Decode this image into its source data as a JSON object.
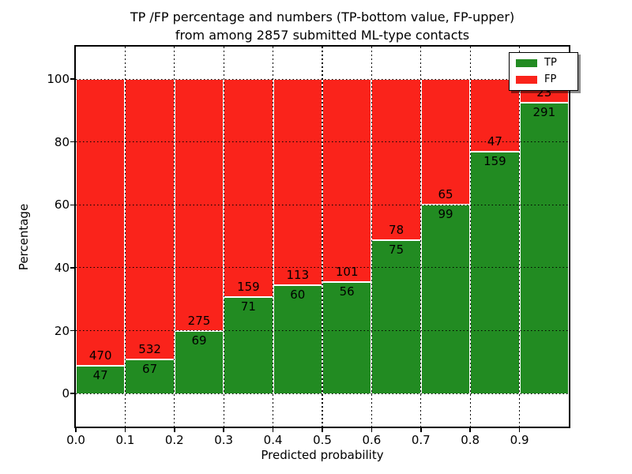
{
  "figure": {
    "title_line1": "TP /FP percentage and numbers (TP-bottom value, FP-upper)",
    "title_line2": "from among 2857 submitted ML-type contacts"
  },
  "axes": {
    "xlabel": "Predicted probability",
    "ylabel": "Percentage",
    "x_tick_labels": [
      "0.0",
      "0.1",
      "0.2",
      "0.3",
      "0.4",
      "0.5",
      "0.6",
      "0.7",
      "0.8",
      "0.9"
    ],
    "x_tick_values": [
      0.0,
      0.1,
      0.2,
      0.3,
      0.4,
      0.5,
      0.6,
      0.7,
      0.8,
      0.9
    ],
    "y_tick_labels": [
      "0",
      "20",
      "40",
      "60",
      "80",
      "100"
    ],
    "y_tick_values": [
      0,
      20,
      40,
      60,
      80,
      100
    ],
    "xlim": [
      0.0,
      1.0
    ],
    "ylim": [
      -10.5,
      110.3
    ],
    "grid": true
  },
  "legend": {
    "position": "upper-right",
    "entries": [
      {
        "label": "TP",
        "color": "#228b22"
      },
      {
        "label": "FP",
        "color": "#fa231b"
      }
    ]
  },
  "colors": {
    "tp": "#228b22",
    "fp": "#fa231b",
    "grid": "#000000",
    "background": "#ffffff"
  },
  "chart_data": {
    "type": "bar",
    "variant": "stacked-100-percent",
    "title": "TP /FP percentage and numbers (TP-bottom value, FP-upper) from among 2857 submitted ML-type contacts",
    "xlabel": "Predicted probability",
    "ylabel": "Percentage",
    "total_contacts": 2857,
    "bin_starts": [
      0.0,
      0.1,
      0.2,
      0.3,
      0.4,
      0.5,
      0.6,
      0.7,
      0.8,
      0.9
    ],
    "bin_width": 0.1,
    "series": [
      {
        "name": "TP",
        "color": "#228b22",
        "counts": [
          47,
          67,
          69,
          71,
          60,
          56,
          75,
          99,
          159,
          291
        ]
      },
      {
        "name": "FP",
        "color": "#fa231b",
        "counts": [
          470,
          532,
          275,
          159,
          113,
          101,
          78,
          65,
          47,
          23
        ]
      }
    ],
    "tp_percent": [
      9.1,
      11.2,
      20.1,
      30.9,
      34.7,
      35.7,
      49.0,
      60.4,
      77.2,
      92.7
    ],
    "ylim_displayed": [
      0,
      100
    ],
    "legend_position": "upper right",
    "grid": "dotted"
  }
}
